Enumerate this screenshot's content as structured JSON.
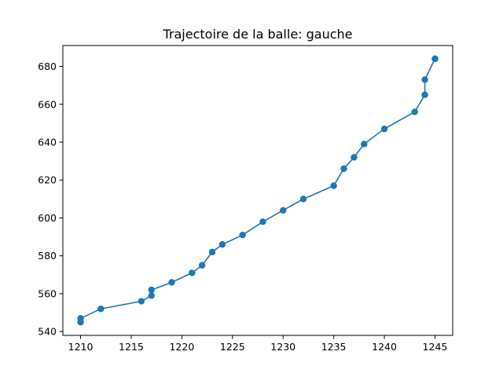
{
  "chart_data": {
    "type": "line",
    "title": "Trajectoire de la balle: gauche",
    "xlabel": "",
    "ylabel": "",
    "xlim": [
      1208.25,
      1246.75
    ],
    "ylim": [
      538.0,
      691.0
    ],
    "x_ticks": [
      1210,
      1215,
      1220,
      1225,
      1230,
      1235,
      1240,
      1245
    ],
    "y_ticks": [
      540,
      560,
      580,
      600,
      620,
      640,
      660,
      680
    ],
    "grid": false,
    "legend": "none",
    "series": [
      {
        "color": "#1f77b4",
        "marker": "circle",
        "points": [
          [
            1245,
            684
          ],
          [
            1245,
            684
          ],
          [
            1244,
            673
          ],
          [
            1244,
            665
          ],
          [
            1243,
            656
          ],
          [
            1240,
            647
          ],
          [
            1238,
            639
          ],
          [
            1237,
            632
          ],
          [
            1236,
            626
          ],
          [
            1235,
            617
          ],
          [
            1232,
            610
          ],
          [
            1230,
            604
          ],
          [
            1228,
            598
          ],
          [
            1226,
            591
          ],
          [
            1224,
            586
          ],
          [
            1223,
            582
          ],
          [
            1222,
            575
          ],
          [
            1221,
            571
          ],
          [
            1219,
            566
          ],
          [
            1217,
            562
          ],
          [
            1217,
            559
          ],
          [
            1216,
            556
          ],
          [
            1212,
            552
          ],
          [
            1210,
            547
          ],
          [
            1210,
            545
          ]
        ]
      }
    ]
  }
}
